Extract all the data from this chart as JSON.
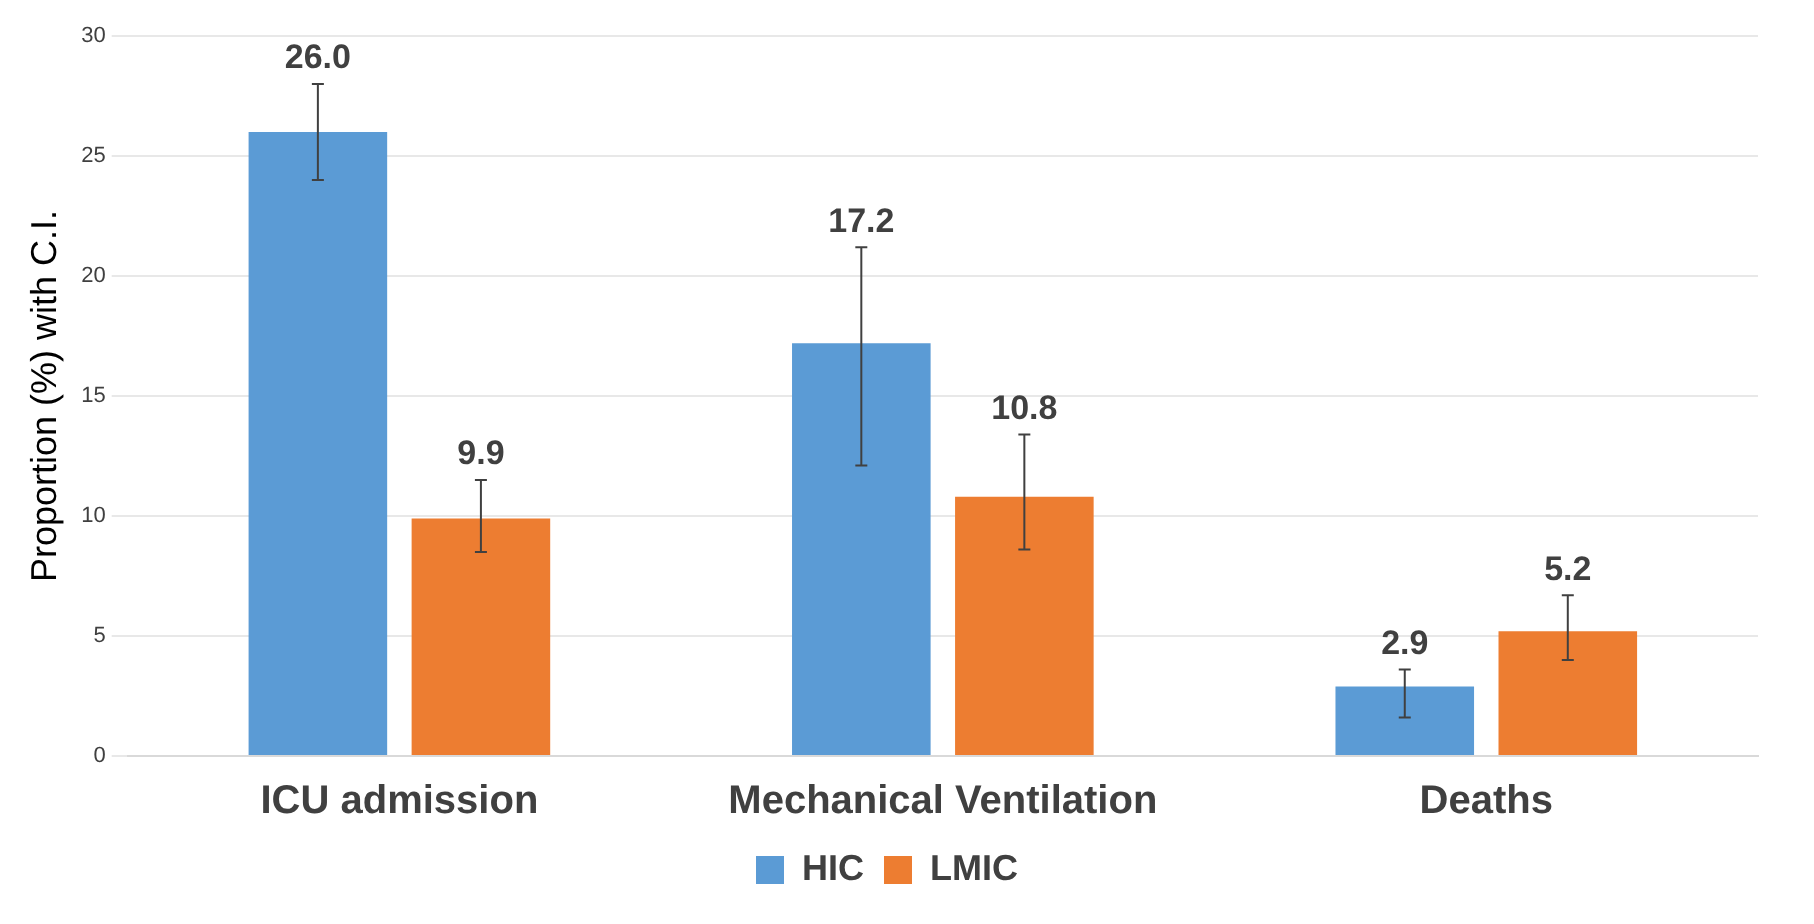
{
  "chart_data": {
    "type": "bar",
    "ylabel": "Proportion (%) with C.I.",
    "categories": [
      "ICU admission",
      "Mechanical Ventilation",
      "Deaths"
    ],
    "series": [
      {
        "name": "HIC",
        "color": "#5b9bd5",
        "values": [
          26.0,
          17.2,
          2.9
        ],
        "value_labels": [
          "26.0",
          "17.2",
          "2.9"
        ],
        "errors": [
          [
            24.0,
            28.0
          ],
          [
            12.1,
            21.2
          ],
          [
            1.6,
            3.6
          ]
        ]
      },
      {
        "name": "LMIC",
        "color": "#ed7d31",
        "values": [
          9.9,
          10.8,
          5.2
        ],
        "value_labels": [
          "9.9",
          "10.8",
          "5.2"
        ],
        "errors": [
          [
            8.5,
            11.5
          ],
          [
            8.6,
            13.4
          ],
          [
            4.0,
            6.7
          ]
        ]
      }
    ],
    "ylim": [
      0,
      30
    ],
    "yticks": [
      0,
      5,
      10,
      15,
      20,
      25,
      30
    ],
    "grid": "y",
    "legend": "bottom"
  }
}
